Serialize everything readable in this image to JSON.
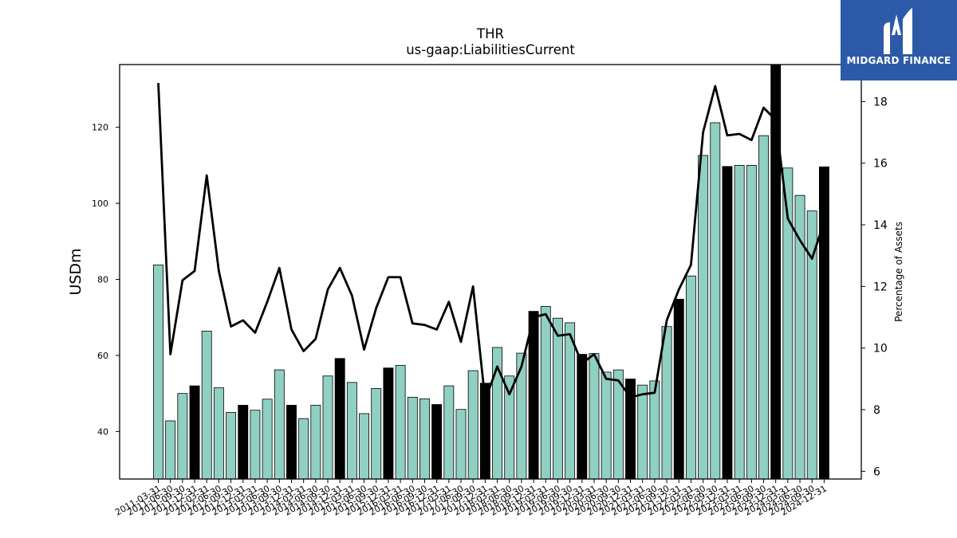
{
  "logo": {
    "text": "MIDGARD FINANCE",
    "icon": "midgard-m-icon",
    "background": "#2d5aa8"
  },
  "chart_data": {
    "type": "bar",
    "title": "THR",
    "subtitle": "us-gaap:LiabilitiesCurrent",
    "ylabel": "USDm",
    "y2label": "Percentage of Assets",
    "ylim": [
      27.5,
      136.5
    ],
    "y2lim": [
      5.75,
      19.2
    ],
    "yticks": [
      40,
      60,
      80,
      100,
      120
    ],
    "y2ticks": [
      6,
      8,
      10,
      12,
      14,
      16,
      18
    ],
    "colors": {
      "bar": "#8fd0c2",
      "bar_fy": "#000000",
      "line": "#000000"
    },
    "categories": [
      "2011-03-31",
      "2011-06-30",
      "2011-09-30",
      "2011-12-31",
      "2012-03-31",
      "2012-06-30",
      "2012-09-30",
      "2012-12-31",
      "2013-03-31",
      "2013-06-30",
      "2013-09-30",
      "2013-12-31",
      "2014-03-31",
      "2014-06-30",
      "2014-09-30",
      "2014-12-31",
      "2015-03-31",
      "2015-06-30",
      "2015-09-30",
      "2015-12-31",
      "2016-03-31",
      "2016-06-30",
      "2016-09-30",
      "2016-12-31",
      "2017-03-31",
      "2017-06-30",
      "2017-09-30",
      "2017-12-31",
      "2018-03-31",
      "2018-06-30",
      "2018-09-30",
      "2018-12-31",
      "2019-03-31",
      "2019-06-30",
      "2019-09-30",
      "2019-12-31",
      "2020-03-31",
      "2020-06-30",
      "2020-09-30",
      "2020-12-31",
      "2021-03-31",
      "2021-06-30",
      "2021-09-30",
      "2021-12-31",
      "2022-03-31",
      "2022-06-30",
      "2022-09-30",
      "2022-12-31",
      "2023-03-31",
      "2023-06-30",
      "2023-09-30",
      "2023-12-31",
      "2024-03-31",
      "2024-06-30",
      "2024-09-30",
      "2024-12-31"
    ],
    "tick_labels": [
      "2011-03-31",
      "2011-06-30",
      "2011-09-30",
      "2011-12-31",
      "2012-03-31",
      "2012-06-30",
      "2012-09-30",
      "2012-12-31",
      "2013-03-31",
      "2013-06-30",
      "2013-09-30",
      "2013-12-31",
      "2014-03-31",
      "2014-06-30",
      "2014-09-30",
      "2014-12-31",
      "2015-03-31",
      "2015-06-30",
      "2015-09-30",
      "2015-12-31",
      "2016-03-31",
      "2016-06-30",
      "2016-09-30",
      "2016-12-31",
      "2017-03-31",
      "2017-06-30",
      "2017-09-30",
      "2017-12-31",
      "2018-03-31",
      "2018-06-30",
      "2018-09-30",
      "2018-12-31",
      "2019-03-31",
      "2019-06-30",
      "2019-09-30",
      "2019-12-31",
      "2020-03-31",
      "2020-06-30",
      "2020-09-30",
      "2020-12-31",
      "2021-03-31",
      "2021-06-30",
      "2021-09-30",
      "2021-12-31",
      "2022-03-31",
      "2022-06-30",
      "2022-09-30",
      "2022-12-31",
      "2023-03-31",
      "2023-06-30",
      "2023-09-30",
      "2023-12-31",
      "2024-03-31",
      "2024-06-30",
      "2024-09-30",
      "2024-12-31"
    ],
    "fiscal_year_end": [
      false,
      false,
      false,
      true,
      false,
      false,
      false,
      true,
      false,
      false,
      false,
      true,
      false,
      false,
      false,
      true,
      false,
      false,
      false,
      true,
      false,
      false,
      false,
      true,
      false,
      false,
      false,
      true,
      false,
      false,
      false,
      true,
      false,
      false,
      false,
      true,
      false,
      false,
      false,
      true,
      false,
      false,
      false,
      true,
      false,
      false,
      false,
      true,
      false,
      false,
      false,
      true,
      false,
      false,
      false,
      true
    ],
    "series": [
      {
        "kind": "bar",
        "axis": "left",
        "values": [
          83.8,
          42.8,
          50.0,
          52.0,
          66.4,
          51.5,
          45.0,
          46.9,
          45.6,
          48.5,
          56.2,
          46.9,
          43.4,
          46.9,
          54.6,
          59.2,
          52.9,
          44.7,
          51.3,
          56.7,
          57.4,
          49.0,
          48.6,
          47.1,
          52.0,
          45.8,
          56.0,
          52.7,
          62.1,
          54.6,
          60.6,
          71.6,
          72.9,
          69.8,
          68.6,
          60.3,
          60.5,
          55.6,
          56.2,
          53.8,
          52.2,
          53.3,
          67.6,
          74.8,
          80.9,
          112.6,
          121.2,
          109.7,
          110.0,
          110.0,
          117.8,
          137.0,
          109.3,
          102.1,
          98.0,
          109.6
        ]
      },
      {
        "kind": "line",
        "axis": "right",
        "values": [
          18.6,
          9.8,
          12.2,
          12.5,
          15.6,
          12.5,
          10.7,
          10.9,
          10.5,
          11.5,
          12.6,
          10.6,
          9.9,
          10.3,
          11.9,
          12.6,
          11.7,
          9.95,
          11.3,
          12.3,
          12.3,
          10.8,
          10.75,
          10.6,
          11.5,
          10.2,
          12.0,
          8.3,
          9.4,
          8.5,
          9.4,
          11.0,
          11.1,
          10.4,
          10.45,
          9.5,
          9.8,
          9.0,
          8.95,
          8.4,
          8.5,
          8.55,
          10.9,
          11.9,
          12.7,
          17.0,
          18.5,
          16.9,
          16.95,
          16.75,
          17.8,
          17.4,
          14.2,
          13.5,
          12.9,
          14.1
        ]
      }
    ]
  }
}
